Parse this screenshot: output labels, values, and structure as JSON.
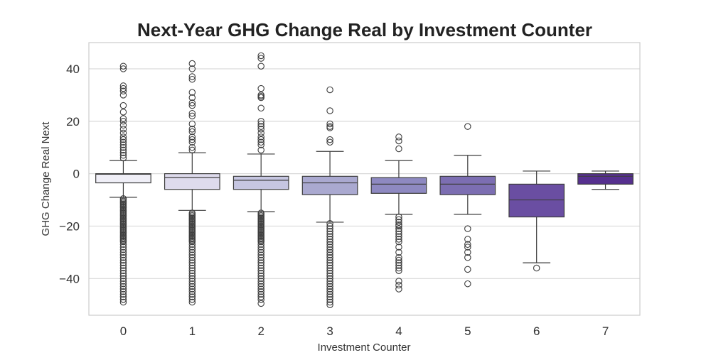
{
  "chart_data": {
    "type": "box",
    "title": "Next-Year GHG Change Real by Investment Counter",
    "xlabel": "Investment Counter",
    "ylabel": "GHG Change Real Next",
    "ylim": [
      -54,
      50
    ],
    "yticks": [
      -40,
      -20,
      0,
      20,
      40
    ],
    "ytick_labels": [
      "−40",
      "−20",
      "0",
      "20",
      "40"
    ],
    "grid": true,
    "categories": [
      "0",
      "1",
      "2",
      "3",
      "4",
      "5",
      "6",
      "7"
    ],
    "colors": [
      "#f0eff7",
      "#dedbed",
      "#c6c6e1",
      "#aaa9d0",
      "#8e89c1",
      "#7c6eb2",
      "#6a4ea2",
      "#56308f"
    ],
    "boxes": [
      {
        "category": "0",
        "whisker_low": -9,
        "q1": -3.5,
        "median": -0.2,
        "q3": 0,
        "whisker_high": 5,
        "outliers_high": [
          41,
          40,
          33.5,
          32.5,
          31.5,
          30,
          26,
          23.5,
          21,
          20,
          18.5,
          17,
          15.5,
          14,
          13,
          12,
          11,
          10,
          9,
          8,
          7,
          6
        ],
        "outliers_low": [
          -9.5,
          -10,
          -10.5,
          -11,
          -11.5,
          -12,
          -12.5,
          -13,
          -13.5,
          -14,
          -14.5,
          -15,
          -15.5,
          -16,
          -16.5,
          -17,
          -17.5,
          -18,
          -18.5,
          -19,
          -19.5,
          -20,
          -20.5,
          -21,
          -21.5,
          -22,
          -22.5,
          -23,
          -23.5,
          -24,
          -24.5,
          -25,
          -25.5,
          -26,
          -27,
          -28,
          -29,
          -30,
          -31,
          -32,
          -33,
          -34,
          -35,
          -36,
          -37,
          -38,
          -39,
          -40,
          -41,
          -42,
          -43,
          -44,
          -45,
          -46,
          -47,
          -48,
          -49
        ]
      },
      {
        "category": "1",
        "whisker_low": -14,
        "q1": -6,
        "median": -1.5,
        "q3": 0,
        "whisker_high": 8,
        "outliers_high": [
          42,
          40,
          37,
          36,
          31,
          29,
          27,
          26,
          23,
          22,
          19,
          17,
          16,
          14,
          13,
          12,
          10,
          9
        ],
        "outliers_low": [
          -15,
          -15.5,
          -16,
          -16.5,
          -17,
          -17.5,
          -18,
          -18.5,
          -19,
          -19.5,
          -20,
          -20.5,
          -21,
          -21.5,
          -22,
          -22.5,
          -23,
          -23.5,
          -24,
          -24.5,
          -25,
          -25.5,
          -26,
          -27,
          -28,
          -29,
          -30,
          -31,
          -32,
          -33,
          -34,
          -35,
          -36,
          -37,
          -38,
          -39,
          -40,
          -41,
          -42,
          -43,
          -44,
          -45,
          -46,
          -47,
          -48,
          -49
        ]
      },
      {
        "category": "2",
        "whisker_low": -14.5,
        "q1": -6,
        "median": -2.5,
        "q3": -1,
        "whisker_high": 7.5,
        "outliers_high": [
          45,
          44,
          41,
          32.5,
          30,
          29.5,
          29,
          25,
          20,
          19,
          18,
          17,
          15.5,
          14,
          13,
          12,
          11,
          9
        ],
        "outliers_low": [
          -15,
          -15.5,
          -16,
          -16.5,
          -17,
          -17.5,
          -18,
          -18.5,
          -19,
          -19.5,
          -20,
          -20.5,
          -21,
          -21.5,
          -22,
          -22.5,
          -23,
          -23.5,
          -24,
          -24.5,
          -25,
          -25.5,
          -26,
          -27,
          -28,
          -29,
          -30,
          -31,
          -32,
          -33,
          -34,
          -35,
          -36,
          -37,
          -38,
          -39,
          -40,
          -41,
          -42,
          -43,
          -44,
          -45,
          -46,
          -47,
          -48,
          -49.5
        ]
      },
      {
        "category": "3",
        "whisker_low": -18.5,
        "q1": -8,
        "median": -3.5,
        "q3": -1,
        "whisker_high": 8.5,
        "outliers_high": [
          32,
          24,
          19,
          18,
          17.5,
          13,
          12
        ],
        "outliers_low": [
          -19,
          -20,
          -21,
          -22,
          -23,
          -24,
          -25,
          -26,
          -27,
          -28,
          -29,
          -30,
          -31,
          -32,
          -33,
          -34,
          -35,
          -36,
          -37,
          -38,
          -39,
          -40,
          -41,
          -42,
          -43,
          -44,
          -45,
          -46,
          -47,
          -48,
          -49,
          -50
        ]
      },
      {
        "category": "4",
        "whisker_low": -15.5,
        "q1": -7.5,
        "median": -4,
        "q3": -1.5,
        "whisker_high": 5,
        "outliers_high": [
          14,
          12.5,
          9.5
        ],
        "outliers_low": [
          -16.5,
          -17.5,
          -18.5,
          -19.5,
          -20,
          -21,
          -22,
          -23,
          -24,
          -25,
          -26,
          -28,
          -30,
          -32,
          -33,
          -34,
          -35,
          -36,
          -37,
          -41,
          -42.5,
          -44
        ]
      },
      {
        "category": "5",
        "whisker_low": -15.5,
        "q1": -8,
        "median": -4,
        "q3": -1,
        "whisker_high": 7,
        "outliers_high": [
          18
        ],
        "outliers_low": [
          -21,
          -25,
          -27,
          -28,
          -30,
          -32,
          -36.5,
          -42
        ]
      },
      {
        "category": "6",
        "whisker_low": -34,
        "q1": -16.5,
        "median": -10,
        "q3": -4,
        "whisker_high": 1,
        "outliers_high": [],
        "outliers_low": [
          -36
        ]
      },
      {
        "category": "7",
        "whisker_low": -6,
        "q1": -4,
        "median": -1,
        "q3": 0,
        "whisker_high": 1,
        "outliers_high": [],
        "outliers_low": []
      }
    ]
  }
}
